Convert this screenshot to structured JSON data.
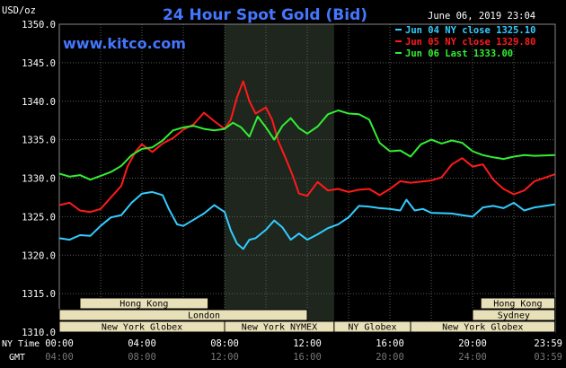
{
  "chart_data": {
    "type": "line",
    "title": "24 Hour Spot Gold (Bid)",
    "source": "www.kitco.com",
    "timestamp": "June 06, 2019 23:04",
    "ylabel": "USD/oz",
    "ylim": [
      1310,
      1350
    ],
    "xlim": [
      0,
      24
    ],
    "y_ticks": [
      "1350.0",
      "1345.0",
      "1340.0",
      "1335.0",
      "1330.0",
      "1325.0",
      "1320.0",
      "1315.0",
      "1310.0"
    ],
    "x_tick_hours": [
      0,
      4,
      8,
      12,
      16,
      20,
      23.983
    ],
    "x_ticks_ny": [
      "00:00",
      "04:00",
      "08:00",
      "12:00",
      "16:00",
      "20:00",
      "23:59"
    ],
    "x_ticks_gmt": [
      "04:00",
      "08:00",
      "12:00",
      "16:00",
      "20:00",
      "24:00",
      "03:59"
    ],
    "x_axis_ny_label": "NY Time",
    "x_axis_gmt_label": "GMT",
    "shaded_region_hours": [
      8.0,
      13.3
    ],
    "grid": true,
    "legend_position": "top-right",
    "colors": {
      "jun04": "#33ccff",
      "jun05": "#ff1a1a",
      "jun06": "#33ee33",
      "shade": "#1e261e",
      "grid": "#5a5a5a",
      "bar_fill": "#e8e0b8",
      "title": "#4477ff"
    },
    "series": [
      {
        "name": "Jun 04 NY close 1325.10",
        "color": "#33ccff",
        "points": [
          [
            0,
            1322.2
          ],
          [
            0.5,
            1322.0
          ],
          [
            1,
            1322.6
          ],
          [
            1.5,
            1322.5
          ],
          [
            2,
            1323.8
          ],
          [
            2.5,
            1324.9
          ],
          [
            3,
            1325.2
          ],
          [
            3.5,
            1326.8
          ],
          [
            4,
            1328.0
          ],
          [
            4.5,
            1328.2
          ],
          [
            5,
            1327.8
          ],
          [
            5.3,
            1326.0
          ],
          [
            5.7,
            1324.0
          ],
          [
            6,
            1323.8
          ],
          [
            6.5,
            1324.6
          ],
          [
            7,
            1325.4
          ],
          [
            7.5,
            1326.5
          ],
          [
            8,
            1325.6
          ],
          [
            8.3,
            1323.2
          ],
          [
            8.6,
            1321.5
          ],
          [
            8.9,
            1320.8
          ],
          [
            9.2,
            1322.0
          ],
          [
            9.5,
            1322.2
          ],
          [
            10,
            1323.3
          ],
          [
            10.4,
            1324.5
          ],
          [
            10.8,
            1323.6
          ],
          [
            11.2,
            1322.0
          ],
          [
            11.6,
            1322.8
          ],
          [
            12,
            1322.0
          ],
          [
            12.5,
            1322.7
          ],
          [
            13,
            1323.5
          ],
          [
            13.5,
            1324.0
          ],
          [
            14,
            1324.9
          ],
          [
            14.5,
            1326.4
          ],
          [
            15,
            1326.3
          ],
          [
            15.5,
            1326.1
          ],
          [
            16,
            1326.0
          ],
          [
            16.5,
            1325.8
          ],
          [
            16.8,
            1327.2
          ],
          [
            17.2,
            1325.8
          ],
          [
            17.6,
            1326.0
          ],
          [
            18,
            1325.5
          ],
          [
            19,
            1325.4
          ],
          [
            19.5,
            1325.2
          ],
          [
            20,
            1325.0
          ],
          [
            20.5,
            1326.2
          ],
          [
            21,
            1326.4
          ],
          [
            21.5,
            1326.1
          ],
          [
            22,
            1326.8
          ],
          [
            22.5,
            1325.8
          ],
          [
            23,
            1326.2
          ],
          [
            23.983,
            1326.6
          ]
        ]
      },
      {
        "name": "Jun 05 NY close 1329.80",
        "color": "#ff1a1a",
        "points": [
          [
            0,
            1326.5
          ],
          [
            0.5,
            1326.8
          ],
          [
            1,
            1325.8
          ],
          [
            1.5,
            1325.6
          ],
          [
            2,
            1326.0
          ],
          [
            2.5,
            1327.5
          ],
          [
            3,
            1329.0
          ],
          [
            3.3,
            1331.5
          ],
          [
            3.7,
            1333.5
          ],
          [
            4,
            1334.4
          ],
          [
            4.5,
            1333.4
          ],
          [
            5,
            1334.5
          ],
          [
            5.5,
            1335.2
          ],
          [
            6,
            1336.3
          ],
          [
            6.5,
            1337.0
          ],
          [
            7,
            1338.5
          ],
          [
            7.5,
            1337.4
          ],
          [
            8,
            1336.4
          ],
          [
            8.3,
            1337.6
          ],
          [
            8.6,
            1340.5
          ],
          [
            8.9,
            1342.6
          ],
          [
            9.2,
            1340.0
          ],
          [
            9.5,
            1338.4
          ],
          [
            10,
            1339.2
          ],
          [
            10.3,
            1337.6
          ],
          [
            10.6,
            1334.8
          ],
          [
            11,
            1332.3
          ],
          [
            11.3,
            1330.3
          ],
          [
            11.6,
            1328.0
          ],
          [
            12,
            1327.7
          ],
          [
            12.5,
            1329.5
          ],
          [
            13,
            1328.4
          ],
          [
            13.5,
            1328.6
          ],
          [
            14,
            1328.2
          ],
          [
            14.5,
            1328.5
          ],
          [
            15,
            1328.6
          ],
          [
            15.5,
            1327.8
          ],
          [
            16,
            1328.6
          ],
          [
            16.5,
            1329.6
          ],
          [
            17,
            1329.4
          ],
          [
            18,
            1329.7
          ],
          [
            18.5,
            1330.1
          ],
          [
            19,
            1331.8
          ],
          [
            19.5,
            1332.6
          ],
          [
            20,
            1331.5
          ],
          [
            20.5,
            1331.8
          ],
          [
            21,
            1329.8
          ],
          [
            21.5,
            1328.6
          ],
          [
            22,
            1327.9
          ],
          [
            22.5,
            1328.4
          ],
          [
            23,
            1329.6
          ],
          [
            23.983,
            1330.5
          ]
        ]
      },
      {
        "name": "Jun 06 Last 1333.00",
        "color": "#33ee33",
        "points": [
          [
            0,
            1330.6
          ],
          [
            0.5,
            1330.2
          ],
          [
            1,
            1330.4
          ],
          [
            1.5,
            1329.8
          ],
          [
            2,
            1330.3
          ],
          [
            2.5,
            1330.8
          ],
          [
            3,
            1331.6
          ],
          [
            3.5,
            1333.0
          ],
          [
            4,
            1333.8
          ],
          [
            4.5,
            1334.0
          ],
          [
            5,
            1334.9
          ],
          [
            5.5,
            1336.2
          ],
          [
            6,
            1336.6
          ],
          [
            6.5,
            1336.8
          ],
          [
            7,
            1336.4
          ],
          [
            7.5,
            1336.2
          ],
          [
            8,
            1336.4
          ],
          [
            8.4,
            1337.2
          ],
          [
            8.8,
            1336.6
          ],
          [
            9.2,
            1335.4
          ],
          [
            9.6,
            1338.0
          ],
          [
            10,
            1336.6
          ],
          [
            10.4,
            1335.0
          ],
          [
            10.8,
            1336.8
          ],
          [
            11.2,
            1337.8
          ],
          [
            11.6,
            1336.5
          ],
          [
            12,
            1335.8
          ],
          [
            12.5,
            1336.7
          ],
          [
            13,
            1338.3
          ],
          [
            13.5,
            1338.8
          ],
          [
            14,
            1338.4
          ],
          [
            14.5,
            1338.3
          ],
          [
            15,
            1337.6
          ],
          [
            15.5,
            1334.6
          ],
          [
            16,
            1333.5
          ],
          [
            16.5,
            1333.6
          ],
          [
            17,
            1332.8
          ],
          [
            17.5,
            1334.4
          ],
          [
            18,
            1335.0
          ],
          [
            18.5,
            1334.5
          ],
          [
            19,
            1334.9
          ],
          [
            19.5,
            1334.6
          ],
          [
            20,
            1333.5
          ],
          [
            20.5,
            1333.0
          ],
          [
            21,
            1332.7
          ],
          [
            21.5,
            1332.5
          ],
          [
            22,
            1332.8
          ],
          [
            22.5,
            1333.0
          ],
          [
            23,
            1332.9
          ],
          [
            23.983,
            1333.0
          ]
        ]
      }
    ],
    "market_bars": [
      {
        "label": "Hong Kong",
        "start": 1.0,
        "end": 7.2,
        "row": 0
      },
      {
        "label": "Hong Kong",
        "start": 20.4,
        "end": 23.983,
        "row": 0
      },
      {
        "label": "London",
        "start": 0.0,
        "end": 23.983,
        "row": 1,
        "text_at": 7.0,
        "segments": [
          [
            0.0,
            12.0
          ],
          [
            20.0,
            23.983
          ]
        ]
      },
      {
        "label": "Sydney",
        "start": 20.0,
        "end": 23.983,
        "row": 1
      },
      {
        "label": "New York Globex",
        "start": 0.0,
        "end": 8.0,
        "row": 2
      },
      {
        "label": "New York NYMEX",
        "start": 8.0,
        "end": 13.3,
        "row": 2
      },
      {
        "label": "NY Globex",
        "start": 13.3,
        "end": 17.0,
        "row": 2
      },
      {
        "label": "New York Globex",
        "start": 17.0,
        "end": 23.983,
        "row": 2
      }
    ]
  }
}
